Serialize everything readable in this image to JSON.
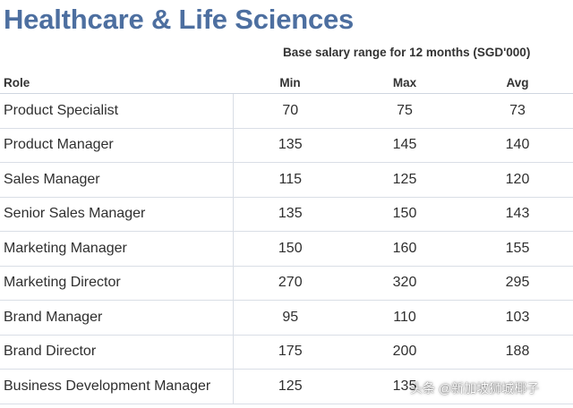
{
  "title": "Healthcare & Life Sciences",
  "subheading": "Base salary range for 12 months (SGD'000)",
  "columns": [
    "Role",
    "Min",
    "Max",
    "Avg"
  ],
  "rows": [
    {
      "role": "Product Specialist",
      "min": "70",
      "max": "75",
      "avg": "73"
    },
    {
      "role": "Product Manager",
      "min": "135",
      "max": "145",
      "avg": "140"
    },
    {
      "role": "Sales Manager",
      "min": "115",
      "max": "125",
      "avg": "120"
    },
    {
      "role": "Senior Sales Manager",
      "min": "135",
      "max": "150",
      "avg": "143"
    },
    {
      "role": "Marketing Manager",
      "min": "150",
      "max": "160",
      "avg": "155"
    },
    {
      "role": "Marketing Director",
      "min": "270",
      "max": "320",
      "avg": "295"
    },
    {
      "role": "Brand Manager",
      "min": "95",
      "max": "110",
      "avg": "103"
    },
    {
      "role": "Brand Director",
      "min": "175",
      "max": "200",
      "avg": "188"
    },
    {
      "role": "Business Development Manager",
      "min": "125",
      "max": "135",
      "avg": ""
    }
  ],
  "watermark": "头条 @新加坡狮城椰子",
  "colors": {
    "title": "#4d6fa0",
    "grid": "#d9dee6",
    "text": "#2f2f2f"
  }
}
